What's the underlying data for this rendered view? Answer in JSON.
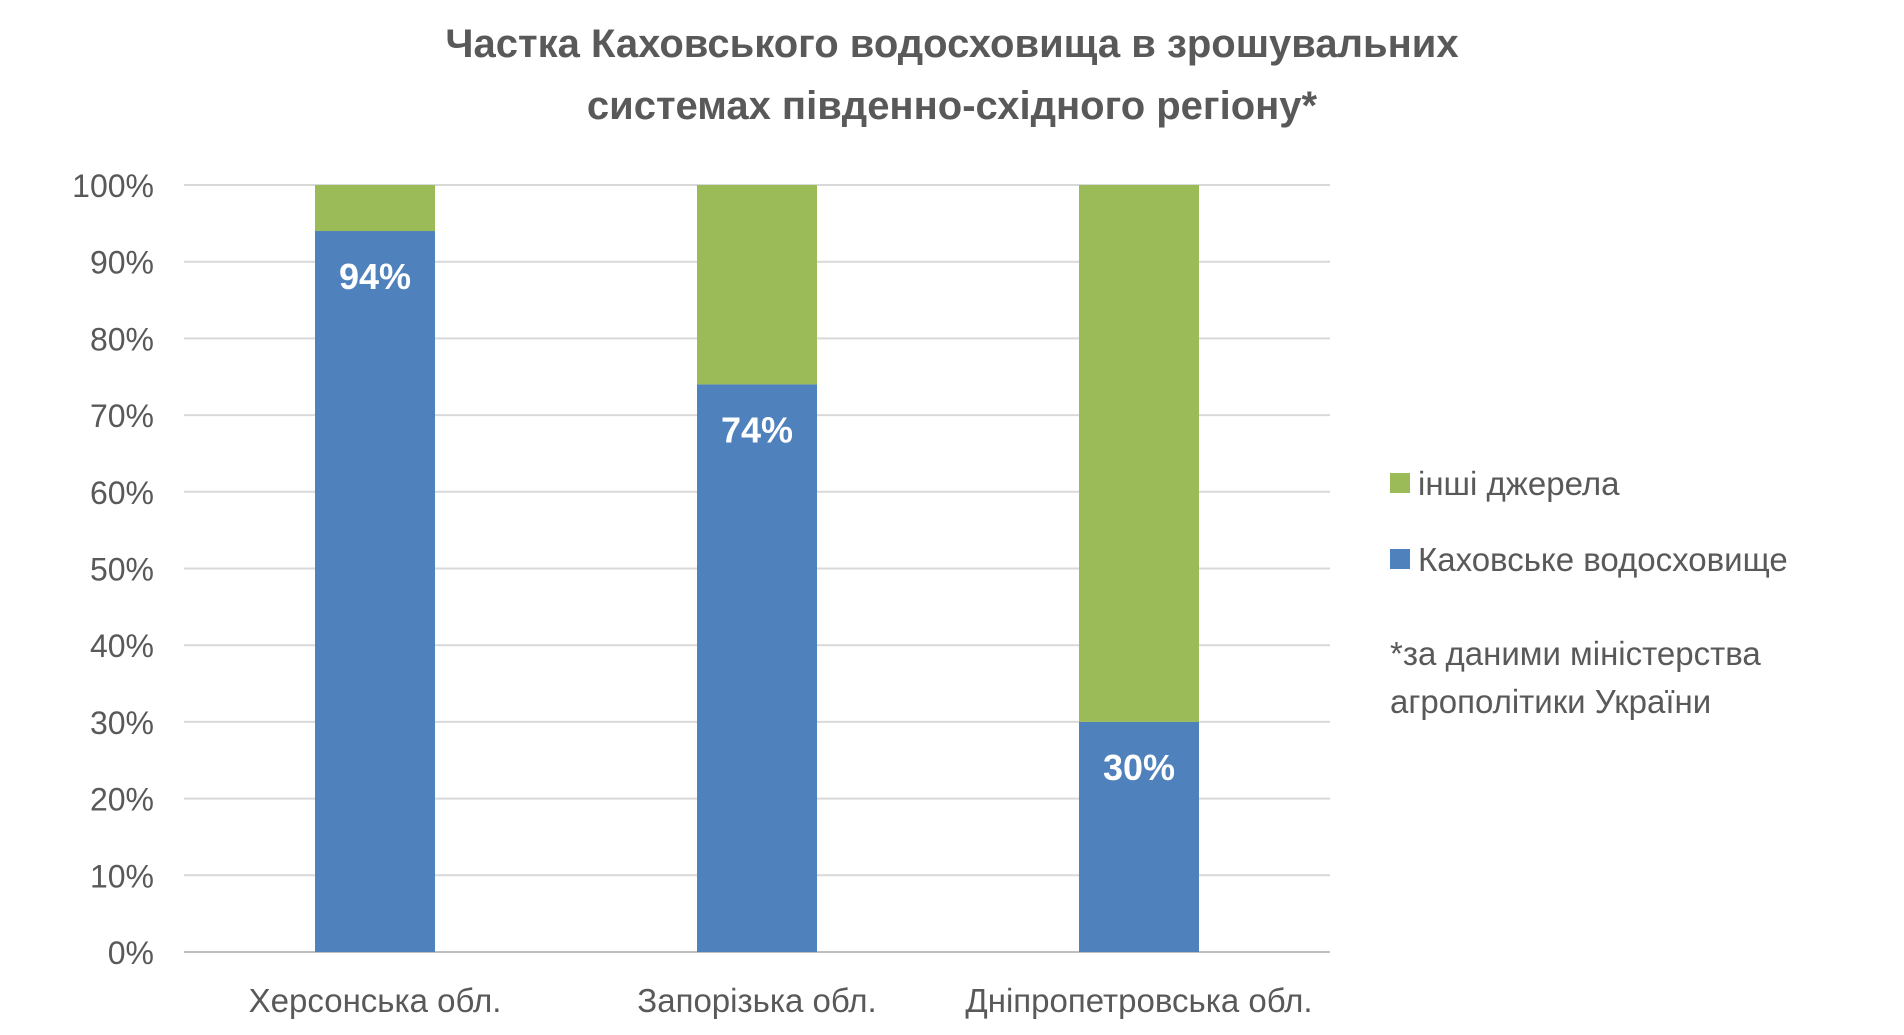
{
  "chart_data": {
    "type": "bar",
    "stacked": true,
    "title_lines": [
      "Частка Каховського водосховища в зрошувальних",
      "системах південно-східного регіону*"
    ],
    "categories": [
      "Херсонська обл.",
      "Запорізька обл.",
      "Дніпропетровська обл."
    ],
    "series": [
      {
        "name": "Каховське водосховище",
        "values": [
          94,
          74,
          30
        ],
        "color": "#4f81bd",
        "data_labels": [
          "94%",
          "74%",
          "30%"
        ]
      },
      {
        "name": "інші джерела",
        "values": [
          6,
          26,
          70
        ],
        "color": "#9bbb59"
      }
    ],
    "ylim": [
      0,
      100
    ],
    "y_ticks": [
      "0%",
      "10%",
      "20%",
      "30%",
      "40%",
      "50%",
      "60%",
      "70%",
      "80%",
      "90%",
      "100%"
    ],
    "grid": true,
    "legend_position": "right",
    "legend_order": [
      "інші джерела",
      "Каховське водосховище"
    ]
  },
  "footnote_lines": [
    "*за даними міністерства",
    "агрополітики України"
  ],
  "colors": {
    "text": "#595959",
    "grid": "#d9d9d9",
    "label": "#ffffff"
  }
}
